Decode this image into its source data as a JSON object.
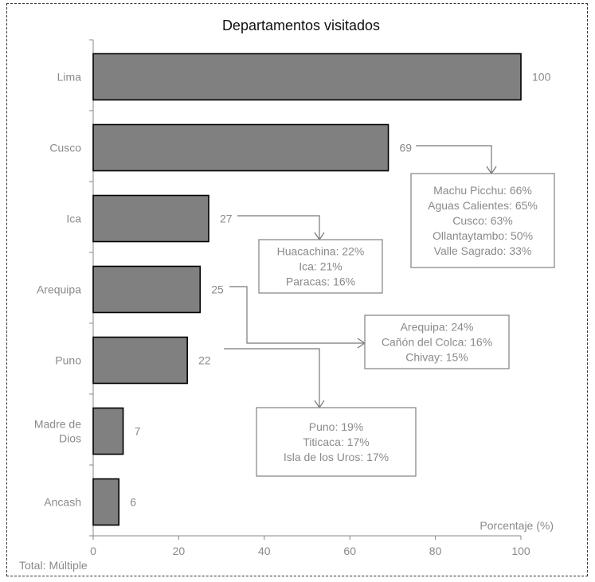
{
  "chart_data": {
    "type": "bar",
    "orientation": "horizontal",
    "title": "Departamentos visitados",
    "xlabel": "Porcentaje (%)",
    "xlim": [
      0,
      100
    ],
    "xticks": [
      "0",
      "20",
      "40",
      "60",
      "80",
      "100"
    ],
    "categories": [
      "Lima",
      "Cusco",
      "Ica",
      "Arequipa",
      "Puno",
      "Madre de Dios",
      "Ancash"
    ],
    "category_lines": [
      [
        "Lima"
      ],
      [
        "Cusco"
      ],
      [
        "Ica"
      ],
      [
        "Arequipa"
      ],
      [
        "Puno"
      ],
      [
        "Madre de",
        "Dios"
      ],
      [
        "Ancash"
      ]
    ],
    "values": [
      100,
      69,
      27,
      25,
      22,
      7,
      6
    ],
    "bar_color": "#808080",
    "annotations": [
      {
        "category": "Cusco",
        "lines": [
          "Machu Picchu: 66%",
          "Aguas Calientes: 65%",
          "Cusco: 63%",
          "Ollantaytambo: 50%",
          "Valle Sagrado: 33%"
        ]
      },
      {
        "category": "Ica",
        "lines": [
          "Huacachina: 22%",
          "Ica: 21%",
          "Paracas: 16%"
        ]
      },
      {
        "category": "Arequipa",
        "lines": [
          "Arequipa: 24%",
          "Cañón del Colca: 16%",
          "Chivay: 15%"
        ]
      },
      {
        "category": "Puno",
        "lines": [
          "Puno: 19%",
          "Titicaca: 17%",
          "Isla de los Uros: 17%"
        ]
      }
    ]
  },
  "footer": {
    "label": "Total",
    "sep": ":",
    "value": "Múltiple"
  }
}
